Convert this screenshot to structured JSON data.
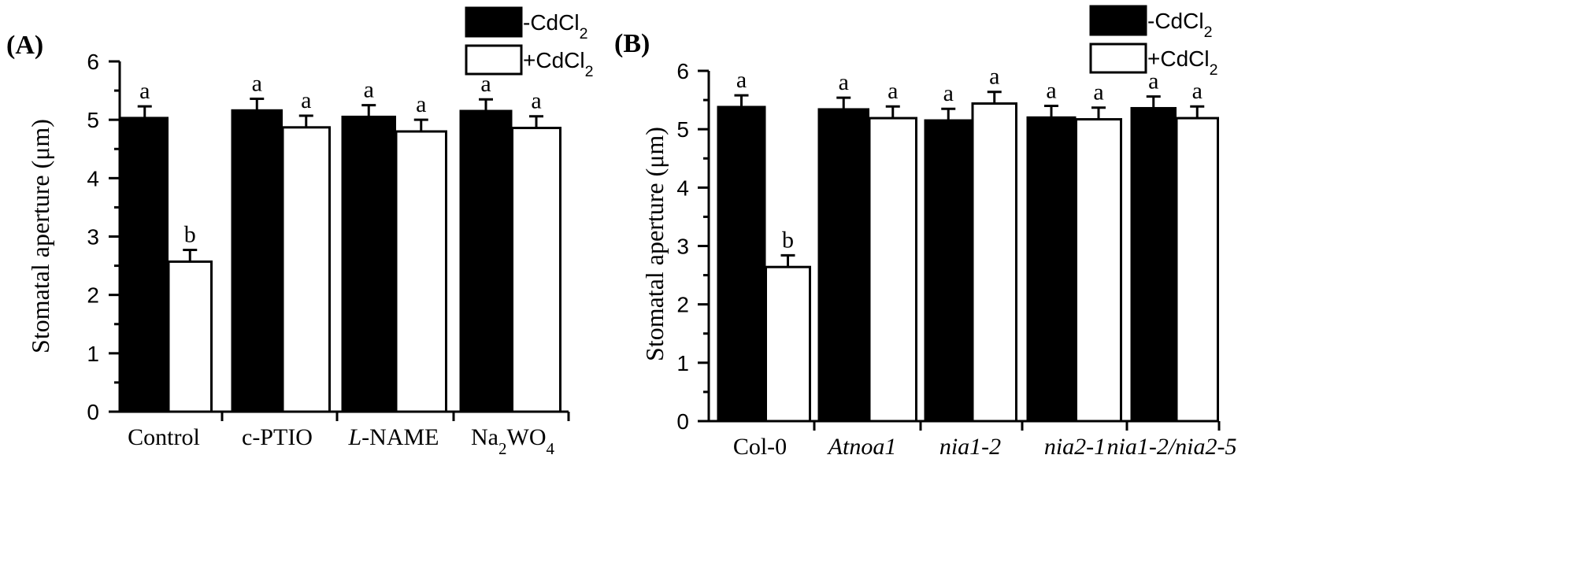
{
  "chart_data": [
    {
      "type": "bar",
      "panel_label": "(A)",
      "ylabel": "Stomatal aperture (μm)",
      "ylim": [
        0,
        6
      ],
      "yticks": [
        "0",
        "1",
        "2",
        "3",
        "4",
        "5",
        "6"
      ],
      "categories": [
        {
          "label": "Control",
          "style": "normal"
        },
        {
          "label": "c-PTIO",
          "style": "normal"
        },
        {
          "label": "L-NAME",
          "style": "lname"
        },
        {
          "label": "Na2WO4",
          "style": "na2wo4"
        }
      ],
      "series": [
        {
          "name": "-CdCl2",
          "fill": "#000000",
          "values": [
            5.03,
            5.16,
            5.05,
            5.15
          ],
          "errors": [
            0.2,
            0.2,
            0.2,
            0.2
          ],
          "letters": [
            "a",
            "a",
            "a",
            "a"
          ]
        },
        {
          "name": "+CdCl2",
          "fill": "#ffffff",
          "values": [
            2.57,
            4.87,
            4.8,
            4.86
          ],
          "errors": [
            0.2,
            0.2,
            0.2,
            0.2
          ],
          "letters": [
            "b",
            "a",
            "a",
            "a"
          ]
        }
      ],
      "legend": {
        "position": "top-right",
        "items": [
          "-CdCl2",
          "+CdCl2"
        ]
      }
    },
    {
      "type": "bar",
      "panel_label": "(B)",
      "ylabel": "Stomatal aperture (μm)",
      "ylim": [
        0,
        6
      ],
      "yticks": [
        "0",
        "1",
        "2",
        "3",
        "4",
        "5",
        "6"
      ],
      "categories": [
        {
          "label": "Col-0",
          "style": "normal"
        },
        {
          "label": "Atnoa1",
          "style": "italic"
        },
        {
          "label": "nia1-2",
          "style": "italic"
        },
        {
          "label": "nia2-1",
          "style": "italic"
        },
        {
          "label": "nia1-2/nia2-5",
          "style": "italic"
        }
      ],
      "series": [
        {
          "name": "-CdCl2",
          "fill": "#000000",
          "values": [
            5.38,
            5.34,
            5.15,
            5.2,
            5.36
          ],
          "errors": [
            0.2,
            0.2,
            0.2,
            0.2,
            0.2
          ],
          "letters": [
            "a",
            "a",
            "a",
            "a",
            "a"
          ]
        },
        {
          "name": "+CdCl2",
          "fill": "#ffffff",
          "values": [
            2.64,
            5.19,
            5.44,
            5.17,
            5.19
          ],
          "errors": [
            0.2,
            0.2,
            0.2,
            0.2,
            0.2
          ],
          "letters": [
            "b",
            "a",
            "a",
            "a",
            "a"
          ]
        }
      ],
      "legend": {
        "position": "top-right",
        "items": [
          "-CdCl2",
          "+CdCl2"
        ]
      }
    }
  ]
}
